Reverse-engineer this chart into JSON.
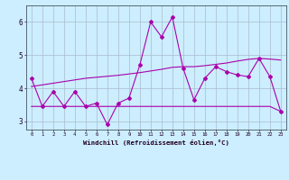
{
  "xlabel": "Windchill (Refroidissement éolien,°C)",
  "background_color": "#cceeff",
  "grid_color": "#aabbcc",
  "line_color": "#aa00aa",
  "xlim": [
    -0.5,
    23.5
  ],
  "ylim": [
    2.75,
    6.5
  ],
  "yticks": [
    3,
    4,
    5,
    6
  ],
  "xticks": [
    0,
    1,
    2,
    3,
    4,
    5,
    6,
    7,
    8,
    9,
    10,
    11,
    12,
    13,
    14,
    15,
    16,
    17,
    18,
    19,
    20,
    21,
    22,
    23
  ],
  "main_x": [
    0,
    1,
    2,
    3,
    4,
    5,
    6,
    7,
    8,
    9,
    10,
    11,
    12,
    13,
    14,
    15,
    16,
    17,
    18,
    19,
    20,
    21,
    22,
    23
  ],
  "main_y": [
    4.3,
    3.45,
    3.9,
    3.45,
    3.9,
    3.45,
    3.55,
    2.9,
    3.55,
    3.7,
    4.7,
    6.0,
    5.55,
    6.15,
    4.6,
    3.65,
    4.3,
    4.65,
    4.5,
    4.4,
    4.35,
    4.9,
    4.35,
    3.3
  ],
  "upper_x": [
    0,
    1,
    2,
    3,
    4,
    5,
    6,
    7,
    8,
    9,
    10,
    11,
    12,
    13,
    14,
    15,
    16,
    17,
    18,
    19,
    20,
    21,
    22,
    23
  ],
  "upper_y": [
    4.05,
    4.1,
    4.15,
    4.2,
    4.25,
    4.3,
    4.33,
    4.36,
    4.39,
    4.43,
    4.47,
    4.52,
    4.57,
    4.63,
    4.65,
    4.65,
    4.68,
    4.72,
    4.76,
    4.82,
    4.87,
    4.9,
    4.88,
    4.85
  ],
  "lower_x": [
    0,
    1,
    2,
    3,
    4,
    5,
    6,
    7,
    8,
    9,
    10,
    11,
    12,
    13,
    14,
    15,
    16,
    17,
    18,
    19,
    20,
    21,
    22,
    23
  ],
  "lower_y": [
    3.45,
    3.45,
    3.45,
    3.45,
    3.45,
    3.45,
    3.45,
    3.45,
    3.45,
    3.45,
    3.45,
    3.45,
    3.45,
    3.45,
    3.45,
    3.45,
    3.45,
    3.45,
    3.45,
    3.45,
    3.45,
    3.45,
    3.45,
    3.3
  ]
}
